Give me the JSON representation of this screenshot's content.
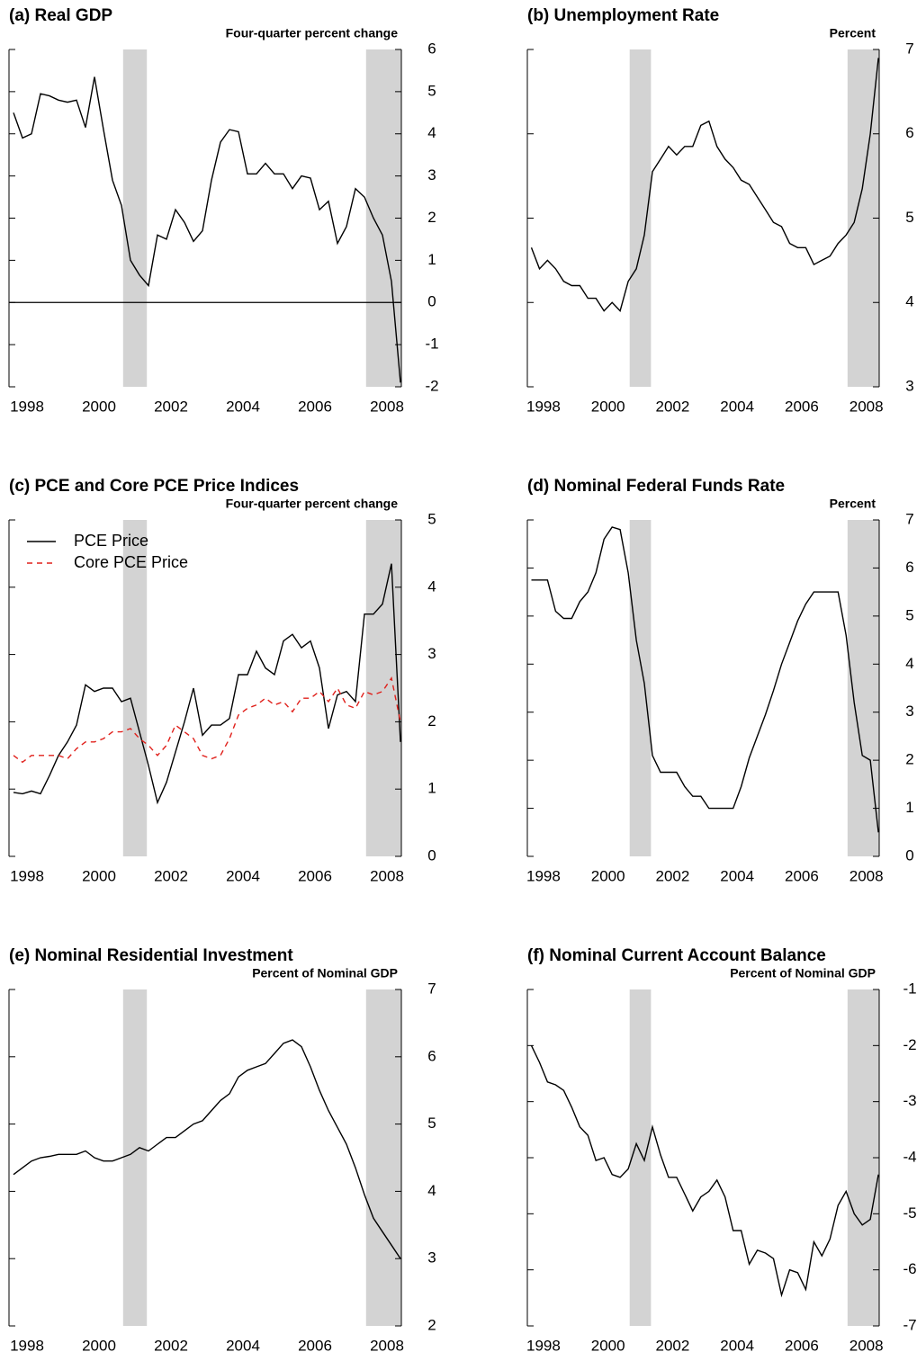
{
  "chart_data": [
    {
      "type": "line",
      "title": "(a) Real GDP",
      "ylabel": "Four-quarter percent change",
      "x": [
        1998.125,
        1998.375,
        1998.625,
        1998.875,
        1999.125,
        1999.375,
        1999.625,
        1999.875,
        2000.125,
        2000.375,
        2000.625,
        2000.875,
        2001.125,
        2001.375,
        2001.625,
        2001.875,
        2002.125,
        2002.375,
        2002.625,
        2002.875,
        2003.125,
        2003.375,
        2003.625,
        2003.875,
        2004.125,
        2004.375,
        2004.625,
        2004.875,
        2005.125,
        2005.375,
        2005.625,
        2005.875,
        2006.125,
        2006.375,
        2006.625,
        2006.875,
        2007.125,
        2007.375,
        2007.625,
        2007.875,
        2008.125,
        2008.375,
        2008.625,
        2008.875
      ],
      "xlim": [
        1998,
        2008.9
      ],
      "xticks": [
        {
          "value": 1998.5,
          "label": "1998"
        },
        {
          "value": 2000.5,
          "label": "2000"
        },
        {
          "value": 2002.5,
          "label": "2002"
        },
        {
          "value": 2004.5,
          "label": "2004"
        },
        {
          "value": 2006.5,
          "label": "2006"
        },
        {
          "value": 2008.5,
          "label": "2008"
        }
      ],
      "ylim": [
        -2,
        6
      ],
      "yticks": [
        -2,
        -1,
        0,
        1,
        2,
        3,
        4,
        5,
        6
      ],
      "zero_line": true,
      "recessions": [
        [
          2001.17,
          2001.83
        ],
        [
          2007.92,
          2008.9
        ]
      ],
      "series": [
        {
          "color": "#000000",
          "values": [
            4.5,
            3.9,
            4.0,
            4.95,
            4.9,
            4.8,
            4.75,
            4.8,
            4.15,
            5.35,
            4.1,
            2.9,
            2.3,
            1.0,
            0.65,
            0.4,
            1.6,
            1.5,
            2.2,
            1.9,
            1.45,
            1.7,
            2.9,
            3.8,
            4.1,
            4.05,
            3.05,
            3.05,
            3.3,
            3.05,
            3.05,
            2.7,
            3.0,
            2.95,
            2.2,
            2.4,
            1.4,
            1.8,
            2.7,
            2.5,
            2.0,
            1.6,
            0.5,
            -1.9
          ]
        }
      ]
    },
    {
      "type": "line",
      "title": "(b) Unemployment Rate",
      "ylabel": "Percent",
      "x": [
        1998.125,
        1998.375,
        1998.625,
        1998.875,
        1999.125,
        1999.375,
        1999.625,
        1999.875,
        2000.125,
        2000.375,
        2000.625,
        2000.875,
        2001.125,
        2001.375,
        2001.625,
        2001.875,
        2002.125,
        2002.375,
        2002.625,
        2002.875,
        2003.125,
        2003.375,
        2003.625,
        2003.875,
        2004.125,
        2004.375,
        2004.625,
        2004.875,
        2005.125,
        2005.375,
        2005.625,
        2005.875,
        2006.125,
        2006.375,
        2006.625,
        2006.875,
        2007.125,
        2007.375,
        2007.625,
        2007.875,
        2008.125,
        2008.375,
        2008.625,
        2008.875
      ],
      "xlim": [
        1998,
        2008.9
      ],
      "xticks": [
        {
          "value": 1998.5,
          "label": "1998"
        },
        {
          "value": 2000.5,
          "label": "2000"
        },
        {
          "value": 2002.5,
          "label": "2002"
        },
        {
          "value": 2004.5,
          "label": "2004"
        },
        {
          "value": 2006.5,
          "label": "2006"
        },
        {
          "value": 2008.5,
          "label": "2008"
        }
      ],
      "ylim": [
        3,
        7
      ],
      "yticks": [
        3,
        4,
        5,
        6,
        7
      ],
      "recessions": [
        [
          2001.17,
          2001.83
        ],
        [
          2007.92,
          2008.9
        ]
      ],
      "series": [
        {
          "color": "#000000",
          "values": [
            4.65,
            4.4,
            4.5,
            4.4,
            4.25,
            4.2,
            4.2,
            4.05,
            4.05,
            3.9,
            4.0,
            3.9,
            4.25,
            4.4,
            4.8,
            5.55,
            5.7,
            5.85,
            5.75,
            5.85,
            5.85,
            6.1,
            6.15,
            5.85,
            5.7,
            5.6,
            5.45,
            5.4,
            5.25,
            5.1,
            4.95,
            4.9,
            4.7,
            4.65,
            4.65,
            4.45,
            4.5,
            4.55,
            4.7,
            4.8,
            4.95,
            5.35,
            6.0,
            6.9
          ]
        }
      ]
    },
    {
      "type": "line",
      "title": "(c) PCE and Core PCE Price Indices",
      "ylabel": "Four-quarter percent change",
      "x": [
        1998.125,
        1998.375,
        1998.625,
        1998.875,
        1999.125,
        1999.375,
        1999.625,
        1999.875,
        2000.125,
        2000.375,
        2000.625,
        2000.875,
        2001.125,
        2001.375,
        2001.625,
        2001.875,
        2002.125,
        2002.375,
        2002.625,
        2002.875,
        2003.125,
        2003.375,
        2003.625,
        2003.875,
        2004.125,
        2004.375,
        2004.625,
        2004.875,
        2005.125,
        2005.375,
        2005.625,
        2005.875,
        2006.125,
        2006.375,
        2006.625,
        2006.875,
        2007.125,
        2007.375,
        2007.625,
        2007.875,
        2008.125,
        2008.375,
        2008.625,
        2008.875
      ],
      "xlim": [
        1998,
        2008.9
      ],
      "xticks": [
        {
          "value": 1998.5,
          "label": "1998"
        },
        {
          "value": 2000.5,
          "label": "2000"
        },
        {
          "value": 2002.5,
          "label": "2002"
        },
        {
          "value": 2004.5,
          "label": "2004"
        },
        {
          "value": 2006.5,
          "label": "2006"
        },
        {
          "value": 2008.5,
          "label": "2008"
        }
      ],
      "ylim": [
        0,
        5
      ],
      "yticks": [
        0,
        1,
        2,
        3,
        4,
        5
      ],
      "legend": "top-left",
      "recessions": [
        [
          2001.17,
          2001.83
        ],
        [
          2007.92,
          2008.9
        ]
      ],
      "series": [
        {
          "name": "PCE Price",
          "color": "#000000",
          "values": [
            0.95,
            0.93,
            0.97,
            0.93,
            1.2,
            1.5,
            1.7,
            1.95,
            2.55,
            2.45,
            2.5,
            2.5,
            2.3,
            2.35,
            1.85,
            1.35,
            0.8,
            1.1,
            1.55,
            2.0,
            2.5,
            1.8,
            1.95,
            1.95,
            2.05,
            2.7,
            2.7,
            3.05,
            2.8,
            2.7,
            3.2,
            3.3,
            3.1,
            3.2,
            2.8,
            1.9,
            2.4,
            2.45,
            2.3,
            3.6,
            3.6,
            3.75,
            4.35,
            1.7
          ]
        },
        {
          "name": "Core PCE Price",
          "color": "#e0201b",
          "dashed": true,
          "values": [
            1.5,
            1.4,
            1.5,
            1.5,
            1.5,
            1.5,
            1.45,
            1.6,
            1.7,
            1.7,
            1.75,
            1.85,
            1.85,
            1.9,
            1.75,
            1.65,
            1.5,
            1.65,
            1.95,
            1.85,
            1.75,
            1.5,
            1.45,
            1.5,
            1.75,
            2.1,
            2.2,
            2.25,
            2.35,
            2.25,
            2.3,
            2.15,
            2.35,
            2.35,
            2.45,
            2.3,
            2.5,
            2.25,
            2.2,
            2.45,
            2.4,
            2.45,
            2.65,
            2.0
          ]
        }
      ]
    },
    {
      "type": "line",
      "title": "(d) Nominal Federal Funds Rate",
      "ylabel": "Percent",
      "x": [
        1998.125,
        1998.375,
        1998.625,
        1998.875,
        1999.125,
        1999.375,
        1999.625,
        1999.875,
        2000.125,
        2000.375,
        2000.625,
        2000.875,
        2001.125,
        2001.375,
        2001.625,
        2001.875,
        2002.125,
        2002.375,
        2002.625,
        2002.875,
        2003.125,
        2003.375,
        2003.625,
        2003.875,
        2004.125,
        2004.375,
        2004.625,
        2004.875,
        2005.125,
        2005.375,
        2005.625,
        2005.875,
        2006.125,
        2006.375,
        2006.625,
        2006.875,
        2007.125,
        2007.375,
        2007.625,
        2007.875,
        2008.125,
        2008.375,
        2008.625,
        2008.875
      ],
      "xlim": [
        1998,
        2008.9
      ],
      "xticks": [
        {
          "value": 1998.5,
          "label": "1998"
        },
        {
          "value": 2000.5,
          "label": "2000"
        },
        {
          "value": 2002.5,
          "label": "2002"
        },
        {
          "value": 2004.5,
          "label": "2004"
        },
        {
          "value": 2006.5,
          "label": "2006"
        },
        {
          "value": 2008.5,
          "label": "2008"
        }
      ],
      "ylim": [
        0,
        7
      ],
      "yticks": [
        0,
        1,
        2,
        3,
        4,
        5,
        6,
        7
      ],
      "recessions": [
        [
          2001.17,
          2001.83
        ],
        [
          2007.92,
          2008.9
        ]
      ],
      "series": [
        {
          "color": "#000000",
          "values": [
            5.75,
            5.75,
            5.75,
            5.1,
            4.95,
            4.95,
            5.3,
            5.5,
            5.9,
            6.6,
            6.85,
            6.8,
            5.9,
            4.5,
            3.6,
            2.1,
            1.75,
            1.75,
            1.75,
            1.45,
            1.25,
            1.25,
            1.0,
            1.0,
            1.0,
            1.0,
            1.45,
            2.05,
            2.5,
            2.95,
            3.45,
            4.0,
            4.45,
            4.9,
            5.25,
            5.5,
            5.5,
            5.5,
            5.5,
            4.6,
            3.2,
            2.1,
            2.0,
            0.5
          ]
        }
      ]
    },
    {
      "type": "line",
      "title": "(e) Nominal Residential Investment",
      "ylabel": "Percent of Nominal GDP",
      "x": [
        1998.125,
        1998.375,
        1998.625,
        1998.875,
        1999.125,
        1999.375,
        1999.625,
        1999.875,
        2000.125,
        2000.375,
        2000.625,
        2000.875,
        2001.125,
        2001.375,
        2001.625,
        2001.875,
        2002.125,
        2002.375,
        2002.625,
        2002.875,
        2003.125,
        2003.375,
        2003.625,
        2003.875,
        2004.125,
        2004.375,
        2004.625,
        2004.875,
        2005.125,
        2005.375,
        2005.625,
        2005.875,
        2006.125,
        2006.375,
        2006.625,
        2006.875,
        2007.125,
        2007.375,
        2007.625,
        2007.875,
        2008.125,
        2008.375,
        2008.625,
        2008.875
      ],
      "xlim": [
        1998,
        2008.9
      ],
      "xticks": [
        {
          "value": 1998.5,
          "label": "1998"
        },
        {
          "value": 2000.5,
          "label": "2000"
        },
        {
          "value": 2002.5,
          "label": "2002"
        },
        {
          "value": 2004.5,
          "label": "2004"
        },
        {
          "value": 2006.5,
          "label": "2006"
        },
        {
          "value": 2008.5,
          "label": "2008"
        }
      ],
      "ylim": [
        2,
        7
      ],
      "yticks": [
        2,
        3,
        4,
        5,
        6,
        7
      ],
      "recessions": [
        [
          2001.17,
          2001.83
        ],
        [
          2007.92,
          2008.9
        ]
      ],
      "series": [
        {
          "color": "#000000",
          "values": [
            4.25,
            4.35,
            4.45,
            4.5,
            4.52,
            4.55,
            4.55,
            4.55,
            4.6,
            4.5,
            4.45,
            4.45,
            4.5,
            4.55,
            4.65,
            4.6,
            4.7,
            4.8,
            4.8,
            4.9,
            5.0,
            5.05,
            5.2,
            5.35,
            5.45,
            5.7,
            5.8,
            5.85,
            5.9,
            6.05,
            6.2,
            6.25,
            6.15,
            5.85,
            5.5,
            5.2,
            4.95,
            4.7,
            4.35,
            3.95,
            3.6,
            3.4,
            3.2,
            3.0
          ]
        }
      ]
    },
    {
      "type": "line",
      "title": "(f) Nominal Current Account Balance",
      "ylabel": "Percent of Nominal GDP",
      "x": [
        1998.125,
        1998.375,
        1998.625,
        1998.875,
        1999.125,
        1999.375,
        1999.625,
        1999.875,
        2000.125,
        2000.375,
        2000.625,
        2000.875,
        2001.125,
        2001.375,
        2001.625,
        2001.875,
        2002.125,
        2002.375,
        2002.625,
        2002.875,
        2003.125,
        2003.375,
        2003.625,
        2003.875,
        2004.125,
        2004.375,
        2004.625,
        2004.875,
        2005.125,
        2005.375,
        2005.625,
        2005.875,
        2006.125,
        2006.375,
        2006.625,
        2006.875,
        2007.125,
        2007.375,
        2007.625,
        2007.875,
        2008.125,
        2008.375,
        2008.625,
        2008.875
      ],
      "xlim": [
        1998,
        2008.9
      ],
      "xticks": [
        {
          "value": 1998.5,
          "label": "1998"
        },
        {
          "value": 2000.5,
          "label": "2000"
        },
        {
          "value": 2002.5,
          "label": "2002"
        },
        {
          "value": 2004.5,
          "label": "2004"
        },
        {
          "value": 2006.5,
          "label": "2006"
        },
        {
          "value": 2008.5,
          "label": "2008"
        }
      ],
      "ylim": [
        -7,
        -1
      ],
      "yticks": [
        -7,
        -6,
        -5,
        -4,
        -3,
        -2,
        -1
      ],
      "recessions": [
        [
          2001.17,
          2001.83
        ],
        [
          2007.92,
          2008.9
        ]
      ],
      "series": [
        {
          "color": "#000000",
          "values": [
            -2.0,
            -2.3,
            -2.65,
            -2.7,
            -2.8,
            -3.1,
            -3.45,
            -3.6,
            -4.05,
            -4.0,
            -4.3,
            -4.35,
            -4.2,
            -3.75,
            -4.05,
            -3.45,
            -3.95,
            -4.35,
            -4.35,
            -4.65,
            -4.95,
            -4.7,
            -4.6,
            -4.4,
            -4.7,
            -5.3,
            -5.3,
            -5.9,
            -5.65,
            -5.7,
            -5.8,
            -6.45,
            -6.0,
            -6.05,
            -6.35,
            -5.5,
            -5.75,
            -5.45,
            -4.85,
            -4.6,
            -5.0,
            -5.2,
            -5.1,
            -4.3
          ]
        }
      ]
    }
  ]
}
